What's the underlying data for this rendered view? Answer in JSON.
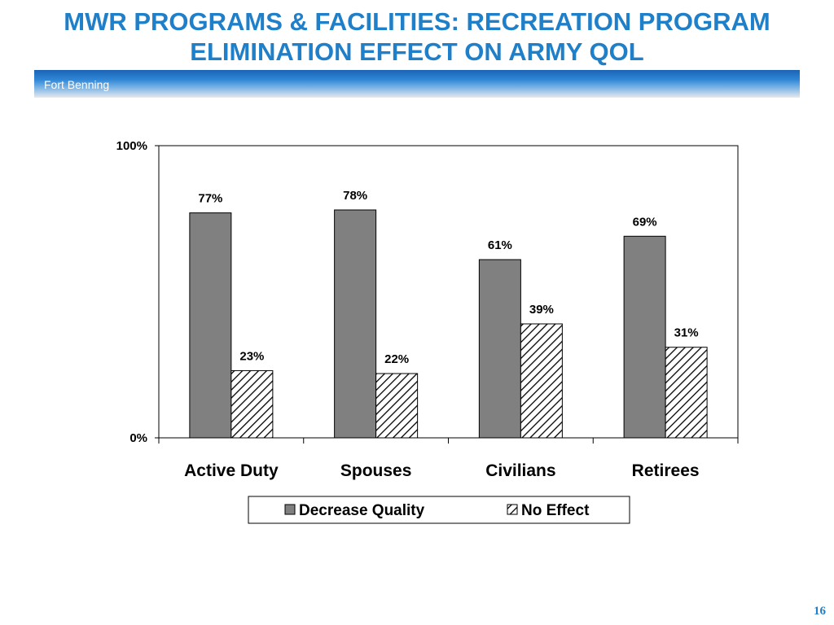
{
  "slide": {
    "title_line1": "MWR PROGRAMS & FACILITIES: RECREATION PROGRAM",
    "title_line2": "ELIMINATION EFFECT ON ARMY QOL",
    "banner_label": "Fort Benning",
    "page_number": "16"
  },
  "colors": {
    "title": "#1f7fc8",
    "decrease_fill": "#808080",
    "no_effect_fill": "hatched-black-white"
  },
  "chart_data": {
    "type": "bar",
    "categories": [
      "Active Duty",
      "Spouses",
      "Civilians",
      "Retirees"
    ],
    "series": [
      {
        "name": "Decrease Quality",
        "values": [
          77,
          78,
          61,
          69
        ],
        "labels": [
          "77%",
          "78%",
          "61%",
          "69%"
        ]
      },
      {
        "name": "No Effect",
        "values": [
          23,
          22,
          39,
          31
        ],
        "labels": [
          "23%",
          "22%",
          "39%",
          "31%"
        ]
      }
    ],
    "yticks": [
      "0%",
      "100%"
    ],
    "ylim": [
      0,
      100
    ],
    "grid": false,
    "legend": "bottom"
  }
}
